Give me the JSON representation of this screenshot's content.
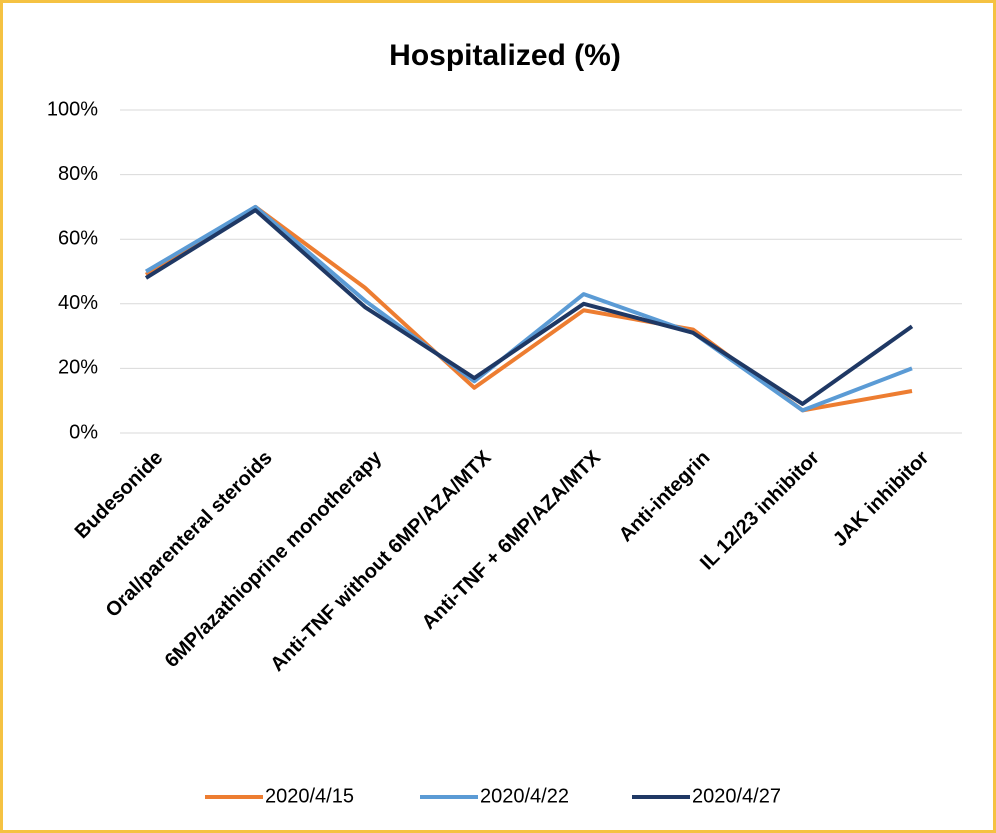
{
  "chart_data": {
    "type": "line",
    "title": "Hospitalized (%)",
    "categories": [
      "Budesonide",
      "Oral/parenteral steroids",
      "6MP/azathioprine monotherapy",
      "Anti-TNF without 6MP/AZA/MTX",
      "Anti-TNF + 6MP/AZA/MTX",
      "Anti-integrin",
      "IL 12/23 inhibitor",
      "JAK inhibitor"
    ],
    "series": [
      {
        "name": "2020/4/15",
        "color": "#ed7d31",
        "values": [
          49,
          70,
          45,
          14,
          38,
          32,
          7,
          13
        ]
      },
      {
        "name": "2020/4/22",
        "color": "#5b9bd5",
        "values": [
          50,
          70,
          41,
          16,
          43,
          31,
          7,
          20
        ]
      },
      {
        "name": "2020/4/27",
        "color": "#1f3864",
        "values": [
          48,
          69,
          39,
          17,
          40,
          31,
          9,
          33
        ]
      }
    ],
    "ylim": [
      0,
      100
    ],
    "yticks": [
      {
        "value": 0,
        "label": "0%"
      },
      {
        "value": 20,
        "label": "20%"
      },
      {
        "value": 40,
        "label": "40%"
      },
      {
        "value": 60,
        "label": "60%"
      },
      {
        "value": 80,
        "label": "80%"
      },
      {
        "value": 100,
        "label": "100%"
      }
    ],
    "grid": true,
    "legend": "bottom"
  }
}
